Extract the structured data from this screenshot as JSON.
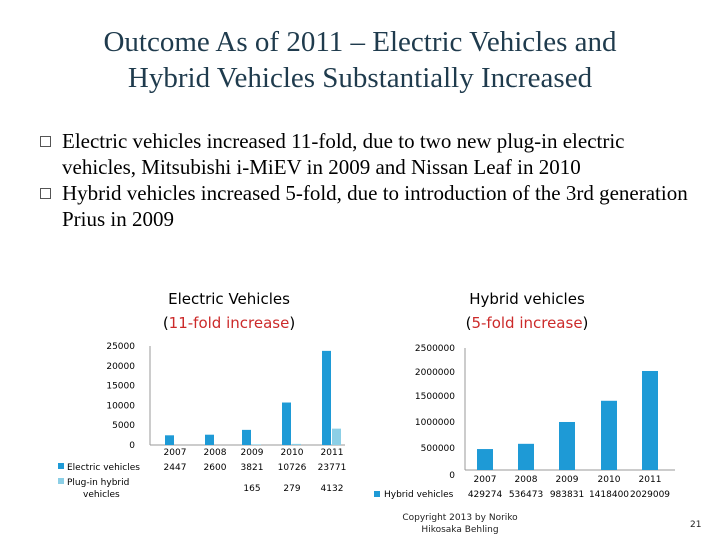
{
  "slide": {
    "title_line1": "Outcome As of 2011 – Electric Vehicles and",
    "title_line2": "Hybrid Vehicles Substantially Increased",
    "bullets": [
      {
        "text": "Electric vehicles increased 11-fold, due to two new plug-in electric vehicles, Mitsubishi i-MiEV in 2009 and Nissan Leaf in 2010"
      },
      {
        "text": "Hybrid vehicles increased 5-fold, due to introduction of the 3rd generation Prius in 2009"
      }
    ],
    "copyright_line1": "Copyright 2013 by Noriko",
    "copyright_line2": "Hikosaka Behling",
    "page_number": "21",
    "colors": {
      "title": "#1f3b4d",
      "bar_main": "#1e9ad6",
      "bar_light": "#8ccfe6",
      "accent_red": "#cc2a2a"
    }
  },
  "chart_data": [
    {
      "type": "bar",
      "title": "Electric Vehicles",
      "subtitle_prefix": "(",
      "subtitle_highlight": "11-fold increase",
      "subtitle_suffix": ")",
      "categories": [
        "2007",
        "2008",
        "2009",
        "2010",
        "2011"
      ],
      "series": [
        {
          "name": "Electric vehicles",
          "values": [
            2447,
            2600,
            3821,
            10726,
            23771
          ],
          "labels": [
            "2447",
            "2600",
            "3821",
            "10726",
            "23771"
          ]
        },
        {
          "name": "Plug-in hybrid vehicles",
          "values": [
            null,
            null,
            165,
            279,
            4132
          ],
          "labels": [
            "",
            "",
            "165",
            "279",
            "4132"
          ]
        }
      ],
      "yticks": [
        "25000",
        "20000",
        "15000",
        "10000",
        "5000",
        "0"
      ],
      "ylim": [
        0,
        25000
      ]
    },
    {
      "type": "bar",
      "title": "Hybrid vehicles",
      "subtitle_prefix": "(",
      "subtitle_highlight": "5-fold increase",
      "subtitle_suffix": ")",
      "categories": [
        "2007",
        "2008",
        "2009",
        "2010",
        "2011"
      ],
      "series": [
        {
          "name": "Hybrid vehicles",
          "values": [
            429274,
            536473,
            983831,
            1418400,
            2029009
          ],
          "labels": [
            "429274",
            "536473",
            "983831",
            "1418400",
            "2029009"
          ]
        }
      ],
      "yticks": [
        "2500000",
        "2000000",
        "1500000",
        "1000000",
        "500000",
        "0"
      ],
      "ylim": [
        0,
        2500000
      ]
    }
  ]
}
